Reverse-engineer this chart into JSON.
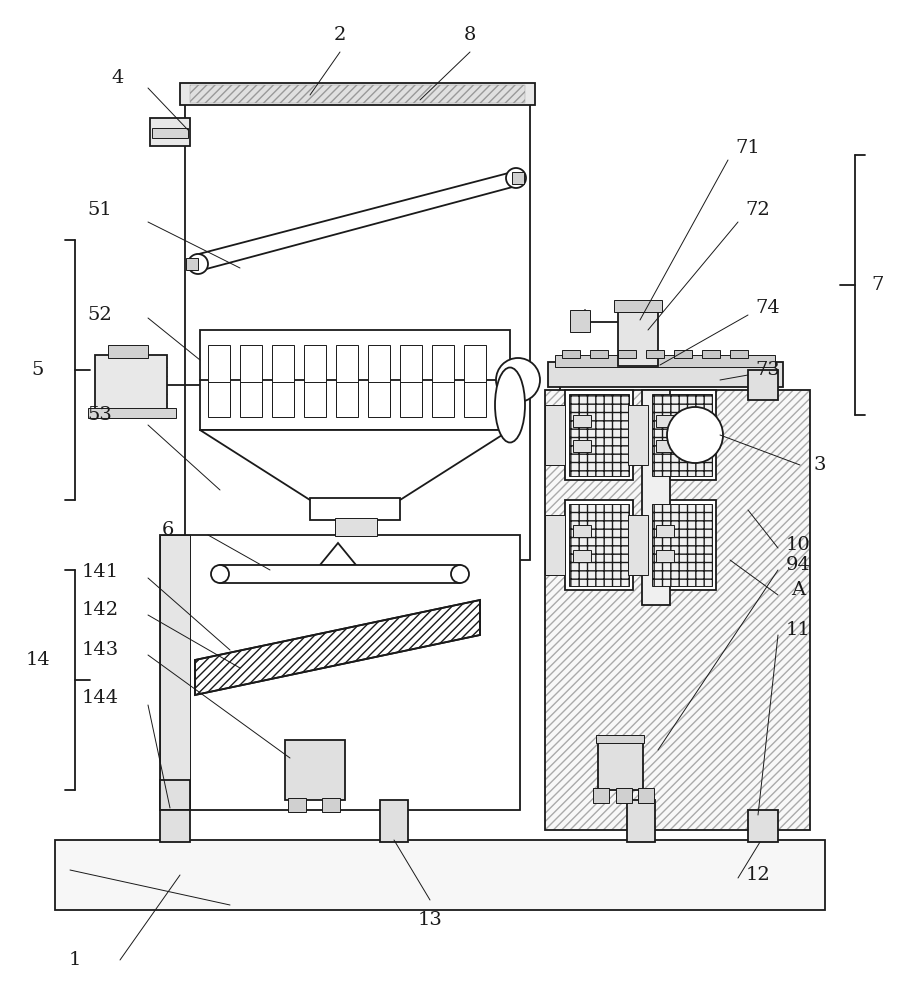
{
  "bg": "#ffffff",
  "lc": "#1a1a1a",
  "figsize": [
    9.07,
    10.0
  ],
  "dpi": 100,
  "lw": 1.3,
  "lt": 0.7
}
